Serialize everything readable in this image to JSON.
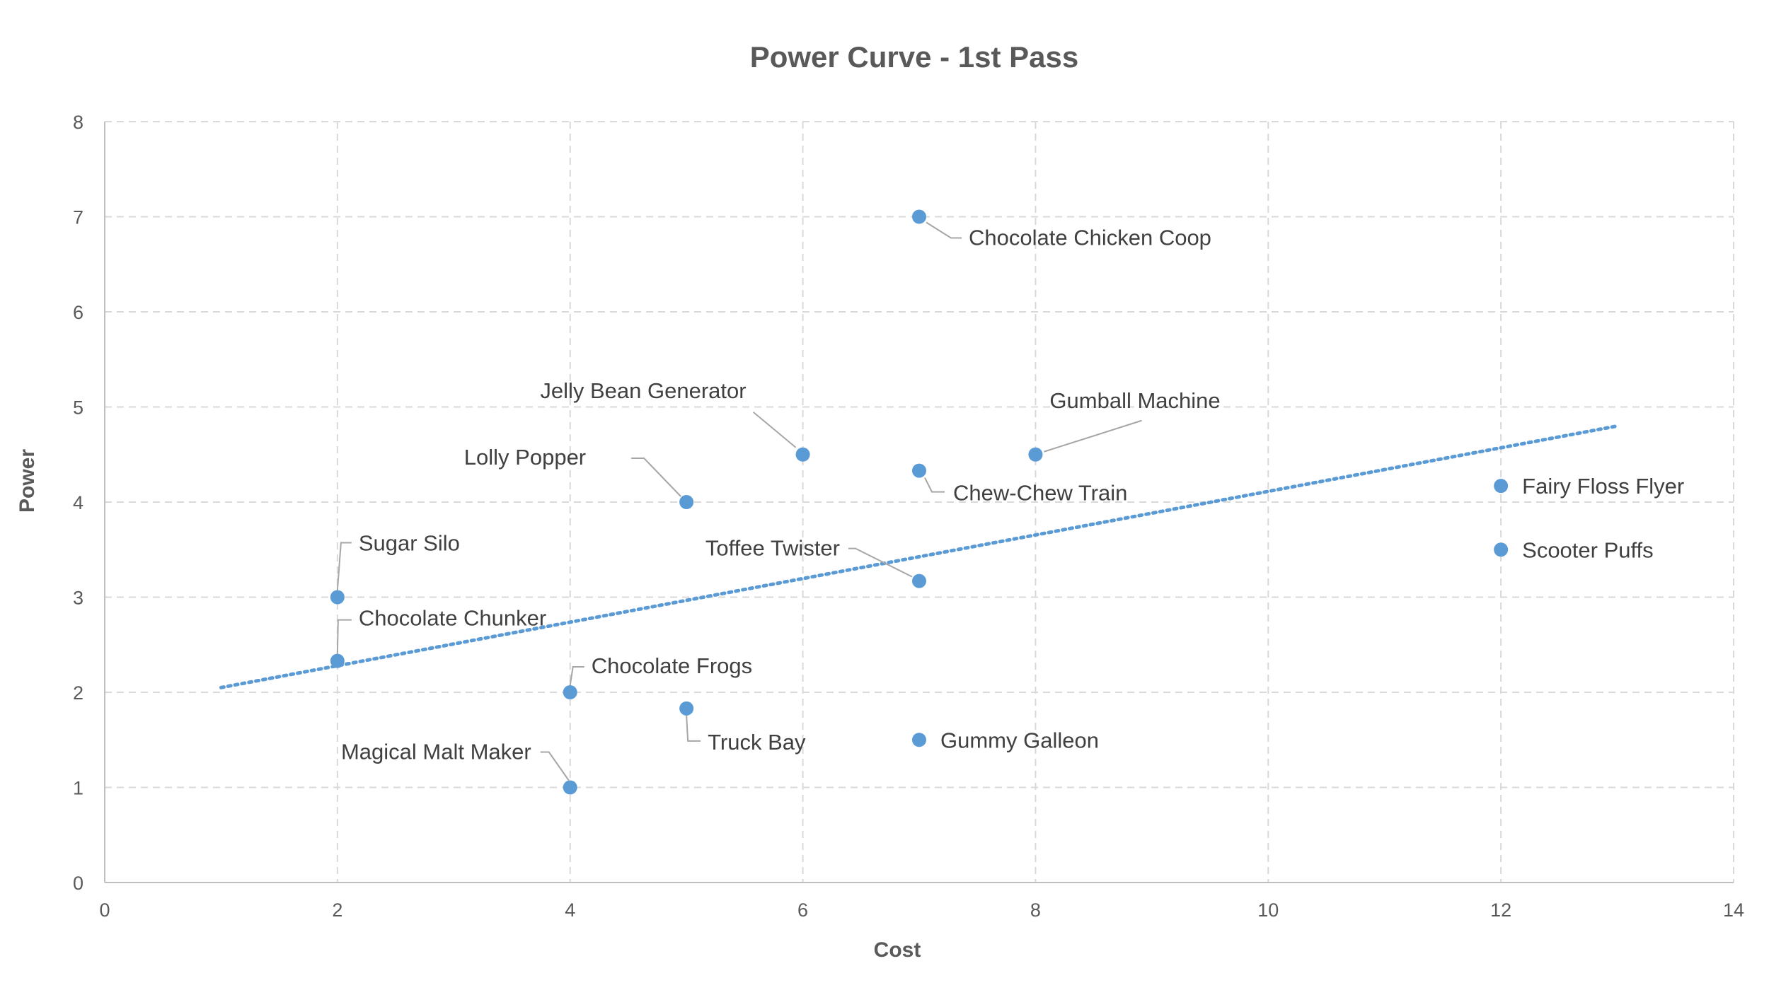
{
  "chart_data": {
    "type": "scatter",
    "title": "Power Curve - 1st Pass",
    "xlabel": "Cost",
    "ylabel": "Power",
    "xlim": [
      0,
      14
    ],
    "ylim": [
      0,
      8
    ],
    "x_ticks": [
      0,
      2,
      4,
      6,
      8,
      10,
      12,
      14
    ],
    "y_ticks": [
      0,
      1,
      2,
      3,
      4,
      5,
      6,
      7,
      8
    ],
    "grid": true,
    "legend": "none",
    "marker_color": "#5b9bd5",
    "points": [
      {
        "label": "Chocolate Chicken Coop",
        "x": 7,
        "y": 7
      },
      {
        "label": "Jelly Bean Generator",
        "x": 6,
        "y": 4.5
      },
      {
        "label": "Gumball Machine",
        "x": 8,
        "y": 4.5
      },
      {
        "label": "Lolly Popper",
        "x": 5,
        "y": 4
      },
      {
        "label": "Chew-Chew Train",
        "x": 7,
        "y": 4.33
      },
      {
        "label": "Fairy Floss Flyer",
        "x": 12,
        "y": 4.17
      },
      {
        "label": "Scooter Puffs",
        "x": 12,
        "y": 3.5
      },
      {
        "label": "Toffee Twister",
        "x": 7,
        "y": 3.17
      },
      {
        "label": "Sugar Silo",
        "x": 2,
        "y": 3
      },
      {
        "label": "Chocolate Chunker",
        "x": 2,
        "y": 2.33
      },
      {
        "label": "Chocolate Frogs",
        "x": 4,
        "y": 2
      },
      {
        "label": "Truck Bay",
        "x": 5,
        "y": 1.83
      },
      {
        "label": "Gummy Galleon",
        "x": 7,
        "y": 1.5
      },
      {
        "label": "Magical Malt Maker",
        "x": 4,
        "y": 1
      }
    ],
    "trendline": {
      "type": "linear",
      "style": "dotted",
      "color": "#5b9bd5",
      "x": [
        1,
        13
      ],
      "y": [
        2.05,
        4.8
      ]
    }
  }
}
